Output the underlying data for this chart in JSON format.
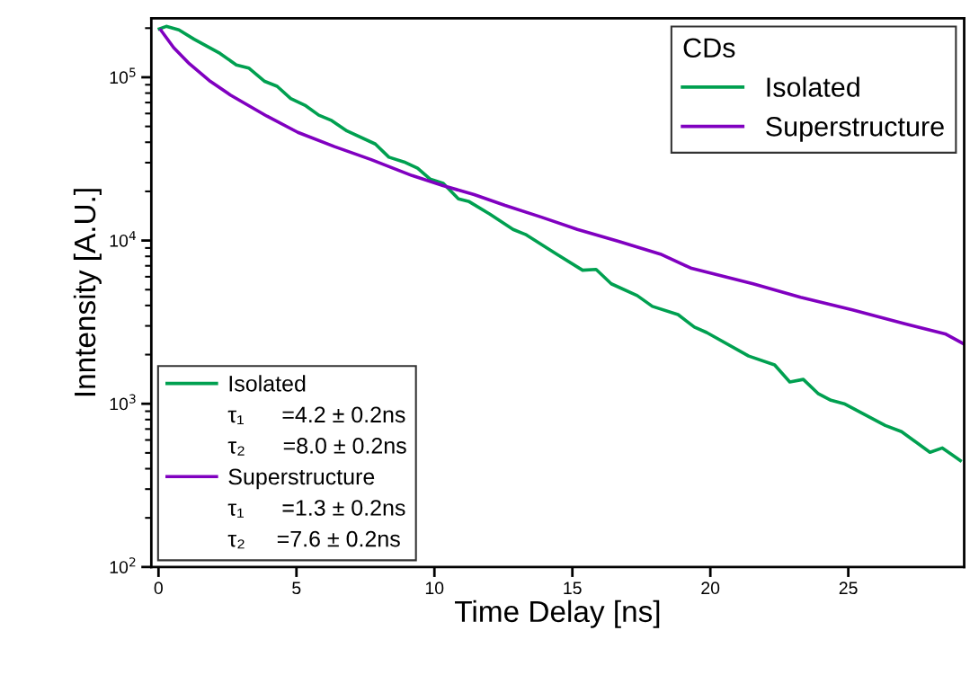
{
  "chart_data": {
    "type": "line",
    "xlabel": "Time Delay [ns]",
    "ylabel": "Inntensity [A.U.]",
    "legend_title": "CDs",
    "log": "y",
    "xlim": [
      -0.26,
      29.2
    ],
    "ylim": [
      100,
      230000
    ],
    "xticks": [
      0,
      5,
      10,
      15,
      20,
      25
    ],
    "yticks": [
      {
        "value": 100,
        "label": "10$^{2}$"
      },
      {
        "value": 1000,
        "label": "10$^{3}$"
      },
      {
        "value": 10000,
        "label": "10$^{4}$"
      },
      {
        "value": 100000,
        "label": "10$^{5}$"
      }
    ],
    "grid": false,
    "legend": "top right",
    "marker": "none",
    "line_style": "solid",
    "annotations": [
      "τ₁      =4.2 ± 0.2ns",
      "τ₂      =8.0 ± 0.2ns",
      "τ₁      =1.3 ± 0.2ns",
      "τ₂     =7.6 ± 0.2ns"
    ],
    "series": [
      {
        "name": "Isolated",
        "color": "#00a050",
        "x": [
          0.03,
          0.28,
          0.74,
          1.29,
          2.23,
          2.82,
          3.27,
          3.85,
          4.3,
          4.79,
          5.34,
          5.81,
          6.28,
          6.83,
          7.86,
          8.35,
          8.9,
          9.39,
          9.84,
          10.32,
          10.87,
          11.26,
          12.01,
          12.85,
          13.3,
          14.43,
          15.37,
          15.86,
          16.41,
          17.35,
          17.9,
          18.83,
          19.42,
          19.87,
          21.39,
          22.33,
          22.88,
          23.37,
          23.92,
          24.37,
          24.85,
          26.34,
          26.93,
          27.96,
          28.41,
          29.06
        ],
        "values": [
          198000,
          205000,
          195000,
          171000,
          140000,
          119000,
          114000,
          94400,
          88100,
          74100,
          66900,
          58600,
          54300,
          46900,
          39000,
          32400,
          30300,
          27700,
          23800,
          22400,
          18000,
          17300,
          14500,
          11700,
          10900,
          8260,
          6580,
          6650,
          5430,
          4600,
          3950,
          3520,
          2950,
          2730,
          1960,
          1730,
          1360,
          1410,
          1150,
          1050,
          1000,
          736,
          675,
          504,
          536,
          449
        ]
      },
      {
        "name": "Superstructure",
        "color": "#8000c0",
        "x": [
          0.09,
          0.55,
          1.12,
          1.88,
          2.62,
          3.93,
          5.05,
          6.38,
          7.69,
          9.19,
          10.31,
          11.44,
          12.56,
          13.88,
          15.18,
          16.7,
          18.19,
          19.32,
          21.55,
          23.27,
          25.15,
          27.02,
          28.51,
          29.2
        ],
        "values": [
          194000,
          152000,
          121000,
          94400,
          77600,
          57800,
          46000,
          37600,
          31400,
          25000,
          21700,
          19100,
          16400,
          13900,
          11700,
          9860,
          8260,
          6750,
          5430,
          4490,
          3760,
          3100,
          2680,
          2320
        ]
      }
    ]
  }
}
